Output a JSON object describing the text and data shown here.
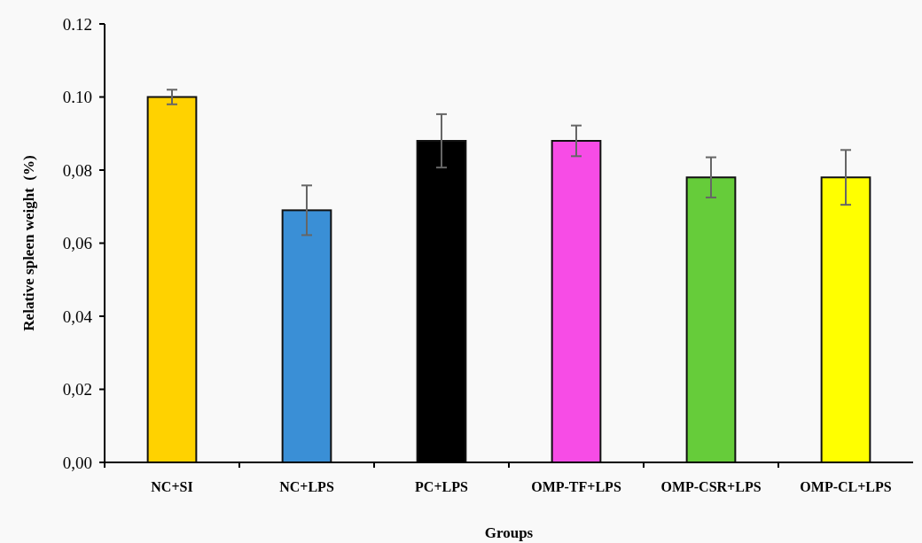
{
  "chart_data": {
    "type": "bar",
    "xlabel": "Groups",
    "ylabel": "Relative spleen weight  (%)",
    "categories": [
      "NC+SI",
      "NC+LPS",
      "PC+LPS",
      "OMP-TF+LPS",
      "OMP-CSR+LPS",
      "OMP-CL+LPS"
    ],
    "values": [
      0.1,
      0.069,
      0.088,
      0.088,
      0.078,
      0.078
    ],
    "errors": [
      0.002,
      0.0068,
      0.0073,
      0.0042,
      0.0055,
      0.0075
    ],
    "colors": [
      "#ffd200",
      "#3a8fd6",
      "#000000",
      "#f74ce6",
      "#66cc3a",
      "#ffff00"
    ],
    "ylim": [
      0,
      0.12
    ],
    "yticks": [
      {
        "value": 0,
        "label": "0,00"
      },
      {
        "value": 0.02,
        "label": "0,02"
      },
      {
        "value": 0.04,
        "label": "0,04"
      },
      {
        "value": 0.06,
        "label": "0,06"
      },
      {
        "value": 0.08,
        "label": "0,08"
      },
      {
        "value": 0.1,
        "label": "0.10"
      },
      {
        "value": 0.12,
        "label": "0.12"
      }
    ],
    "grid": false
  }
}
